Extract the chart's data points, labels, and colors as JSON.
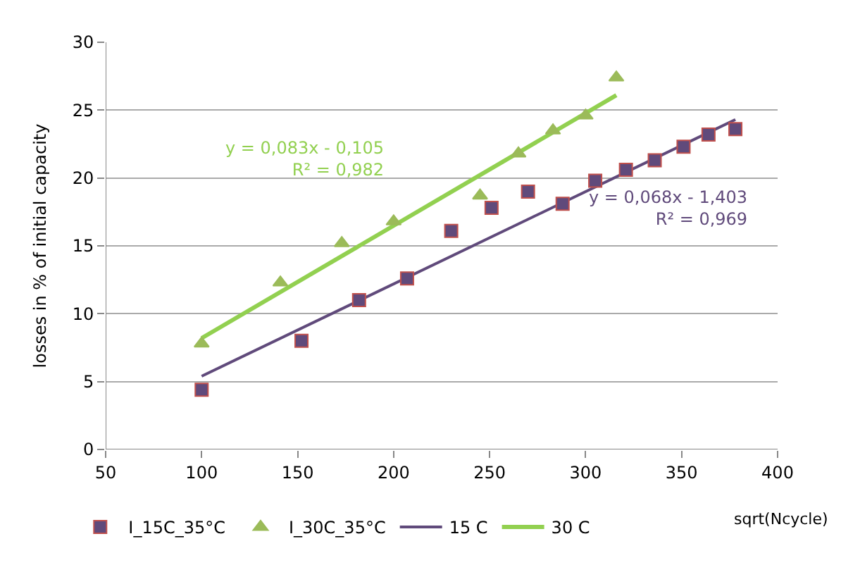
{
  "chart_data": {
    "type": "scatter",
    "ylabel": "losses in % of initial capacity",
    "xlabel": "sqrt(Ncycle)",
    "xlim": [
      50,
      400
    ],
    "xticks": [
      50,
      100,
      150,
      200,
      250,
      300,
      350,
      400
    ],
    "ylim": [
      0,
      30
    ],
    "yticks": [
      0,
      5,
      10,
      15,
      20,
      25,
      30
    ],
    "grid": "y",
    "legend": "bottom",
    "series": [
      {
        "name": "I_15C_35°C",
        "marker": "square",
        "color": "#604a7b",
        "x": [
          100,
          152,
          182,
          207,
          230,
          251,
          270,
          288,
          305,
          321,
          336,
          351,
          364,
          378
        ],
        "values": [
          4.4,
          8.0,
          11.0,
          12.6,
          16.1,
          17.8,
          19.0,
          18.1,
          19.8,
          20.6,
          21.3,
          22.3,
          23.2,
          23.6
        ]
      },
      {
        "name": "I_30C_35°C",
        "marker": "triangle",
        "color": "#9bbb59",
        "x": [
          100,
          141,
          173,
          200,
          245,
          265,
          283,
          300,
          316
        ],
        "values": [
          7.8,
          12.3,
          15.2,
          16.8,
          18.7,
          21.8,
          23.5,
          24.6,
          27.4
        ]
      },
      {
        "name": "15 C",
        "type": "line",
        "color": "#604a7b",
        "x": [
          100,
          378
        ],
        "values": [
          5.4,
          24.3
        ]
      },
      {
        "name": "30 C",
        "type": "line",
        "color": "#92d050",
        "x": [
          100,
          316
        ],
        "values": [
          8.2,
          26.1
        ]
      }
    ],
    "annotations": [
      "y = 0,083x - 0,105\nR² = 0,982",
      "y = 0,068x - 1,403\nR² = 0,969"
    ]
  }
}
